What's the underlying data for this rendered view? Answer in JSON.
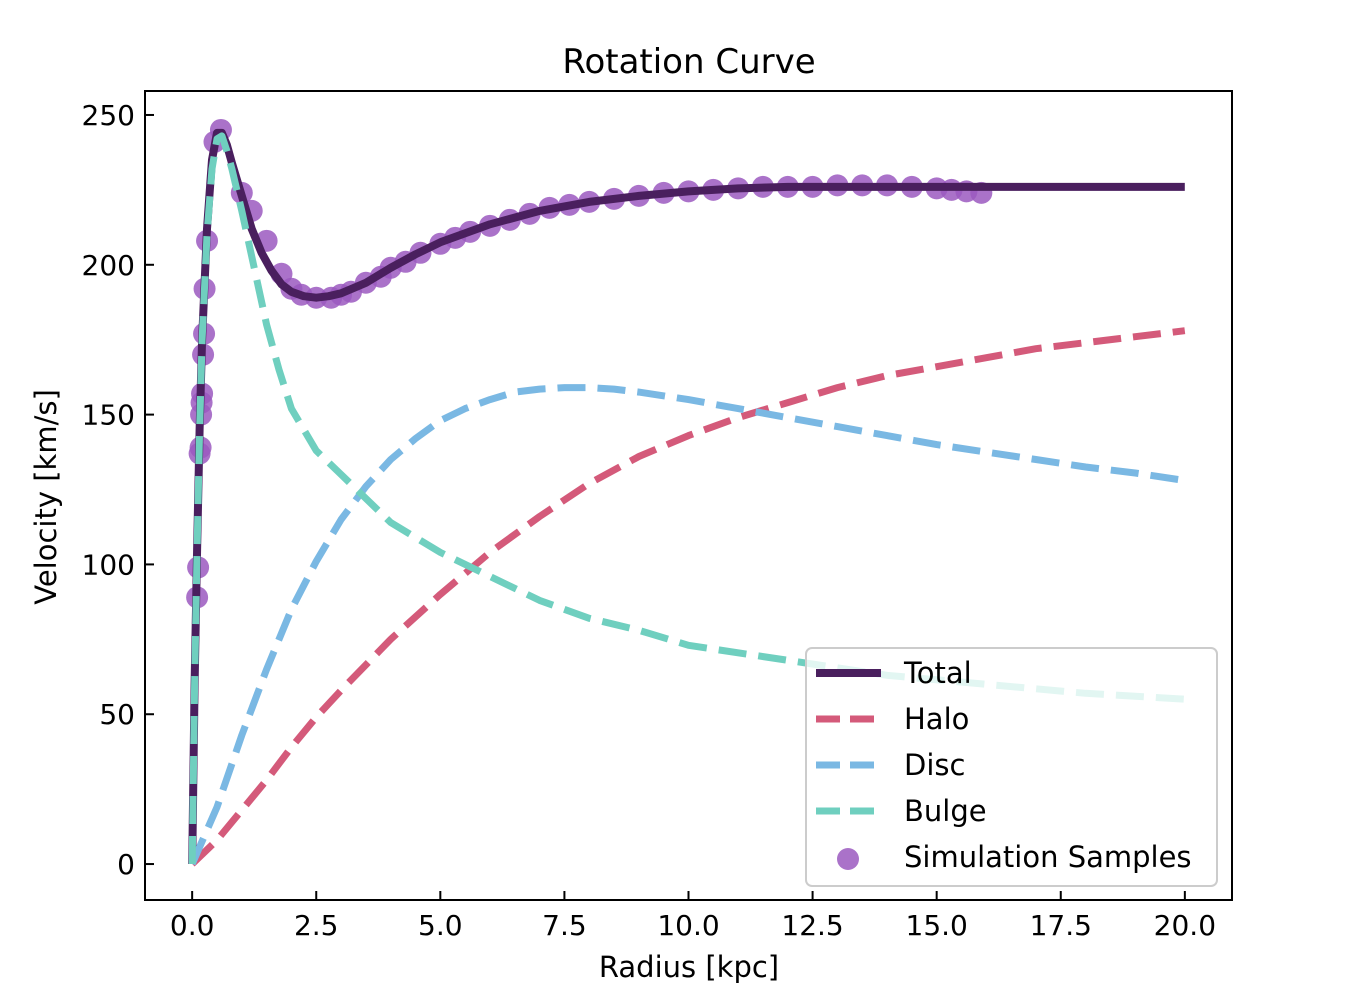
{
  "chart_data": {
    "type": "line",
    "title": "Rotation Curve",
    "xlabel": "Radius [kpc]",
    "ylabel": "Velocity [km/s]",
    "xlim": [
      -0.95,
      20.95
    ],
    "ylim": [
      -12,
      258
    ],
    "xticks": [
      0.0,
      2.5,
      5.0,
      7.5,
      10.0,
      12.5,
      15.0,
      17.5,
      20.0
    ],
    "xtick_labels": [
      "0.0",
      "2.5",
      "5.0",
      "7.5",
      "10.0",
      "12.5",
      "15.0",
      "17.5",
      "20.0"
    ],
    "yticks": [
      0,
      50,
      100,
      150,
      200,
      250
    ],
    "ytick_labels": [
      "0",
      "50",
      "100",
      "150",
      "200",
      "250"
    ],
    "grid": false,
    "legend_position": "lower-right",
    "series": [
      {
        "name": "Total",
        "style": "solid",
        "color": "#4a1f5e",
        "points": [
          [
            0,
            0
          ],
          [
            0.05,
            60
          ],
          [
            0.1,
            105
          ],
          [
            0.15,
            145
          ],
          [
            0.2,
            175
          ],
          [
            0.3,
            212
          ],
          [
            0.4,
            235
          ],
          [
            0.5,
            244
          ],
          [
            0.6,
            244
          ],
          [
            0.7,
            240
          ],
          [
            0.8,
            234
          ],
          [
            1.0,
            223
          ],
          [
            1.2,
            212
          ],
          [
            1.4,
            204
          ],
          [
            1.6,
            198
          ],
          [
            1.8,
            193.5
          ],
          [
            2.0,
            191
          ],
          [
            2.25,
            189.5
          ],
          [
            2.5,
            189
          ],
          [
            2.75,
            189.5
          ],
          [
            3.0,
            190.5
          ],
          [
            3.5,
            194
          ],
          [
            4.0,
            199
          ],
          [
            4.5,
            203.5
          ],
          [
            5.0,
            207.5
          ],
          [
            6.0,
            213.5
          ],
          [
            7.0,
            218
          ],
          [
            8.0,
            221
          ],
          [
            9.0,
            223
          ],
          [
            10.0,
            224.5
          ],
          [
            11.0,
            225.5
          ],
          [
            12.0,
            226
          ],
          [
            13.0,
            226
          ],
          [
            14.0,
            226
          ],
          [
            15.0,
            226
          ],
          [
            16.0,
            226
          ],
          [
            18.0,
            226
          ],
          [
            20.0,
            226
          ]
        ]
      },
      {
        "name": "Halo",
        "style": "dashed",
        "color": "#d45a7a",
        "points": [
          [
            0,
            0
          ],
          [
            0.5,
            8
          ],
          [
            1,
            18
          ],
          [
            1.5,
            28
          ],
          [
            2,
            39
          ],
          [
            2.5,
            49
          ],
          [
            3,
            58
          ],
          [
            4,
            75
          ],
          [
            5,
            90
          ],
          [
            6,
            104
          ],
          [
            7,
            116
          ],
          [
            8,
            127
          ],
          [
            9,
            136
          ],
          [
            10,
            143
          ],
          [
            11,
            149
          ],
          [
            12,
            154
          ],
          [
            13,
            159
          ],
          [
            14,
            163
          ],
          [
            15,
            166
          ],
          [
            16,
            169
          ],
          [
            17,
            172
          ],
          [
            18,
            174
          ],
          [
            19,
            176
          ],
          [
            20,
            178
          ]
        ]
      },
      {
        "name": "Disc",
        "style": "dashed",
        "color": "#7ab8e3",
        "points": [
          [
            0,
            0
          ],
          [
            0.5,
            19
          ],
          [
            1,
            43
          ],
          [
            1.5,
            65
          ],
          [
            2,
            85
          ],
          [
            2.5,
            101
          ],
          [
            3,
            115
          ],
          [
            3.5,
            126
          ],
          [
            4,
            135
          ],
          [
            4.5,
            142
          ],
          [
            5,
            148
          ],
          [
            5.5,
            152
          ],
          [
            6,
            155
          ],
          [
            6.5,
            157.5
          ],
          [
            7,
            158.5
          ],
          [
            7.5,
            159
          ],
          [
            8,
            159
          ],
          [
            8.5,
            158.5
          ],
          [
            9,
            157.5
          ],
          [
            10,
            155
          ],
          [
            11,
            152
          ],
          [
            12,
            149
          ],
          [
            13,
            146
          ],
          [
            14,
            143
          ],
          [
            15,
            140
          ],
          [
            16,
            137.5
          ],
          [
            17,
            135
          ],
          [
            18,
            132.5
          ],
          [
            19,
            130.5
          ],
          [
            20,
            128
          ]
        ]
      },
      {
        "name": "Bulge",
        "style": "dashed",
        "color": "#6fcfbf",
        "points": [
          [
            0,
            0
          ],
          [
            0.05,
            60
          ],
          [
            0.1,
            105
          ],
          [
            0.15,
            145
          ],
          [
            0.2,
            175
          ],
          [
            0.3,
            210
          ],
          [
            0.4,
            232
          ],
          [
            0.5,
            242
          ],
          [
            0.6,
            243
          ],
          [
            0.7,
            238
          ],
          [
            0.8,
            232
          ],
          [
            1.0,
            218
          ],
          [
            1.25,
            199
          ],
          [
            1.5,
            180
          ],
          [
            1.75,
            165
          ],
          [
            2.0,
            152
          ],
          [
            2.5,
            138
          ],
          [
            3.0,
            130
          ],
          [
            3.5,
            122
          ],
          [
            4.0,
            114
          ],
          [
            5.0,
            104
          ],
          [
            6.0,
            96
          ],
          [
            7.0,
            88
          ],
          [
            8.0,
            82
          ],
          [
            9.0,
            78
          ],
          [
            10.0,
            73
          ],
          [
            12.0,
            68
          ],
          [
            14.0,
            63
          ],
          [
            16.0,
            60
          ],
          [
            18.0,
            57
          ],
          [
            20.0,
            55
          ]
        ]
      }
    ],
    "samples": {
      "name": "Simulation Samples",
      "color": "#9b59c0",
      "points": [
        [
          0.1,
          89
        ],
        [
          0.12,
          99
        ],
        [
          0.15,
          137
        ],
        [
          0.17,
          139
        ],
        [
          0.18,
          150
        ],
        [
          0.19,
          154
        ],
        [
          0.2,
          157
        ],
        [
          0.22,
          170
        ],
        [
          0.24,
          177
        ],
        [
          0.25,
          192
        ],
        [
          0.3,
          208
        ],
        [
          0.45,
          241
        ],
        [
          0.58,
          245
        ],
        [
          1.0,
          224
        ],
        [
          1.2,
          218
        ],
        [
          1.5,
          208
        ],
        [
          1.8,
          197
        ],
        [
          2.0,
          192
        ],
        [
          2.2,
          190
        ],
        [
          2.5,
          189
        ],
        [
          2.8,
          189
        ],
        [
          3.0,
          190
        ],
        [
          3.2,
          191
        ],
        [
          3.5,
          194
        ],
        [
          3.8,
          196
        ],
        [
          4.0,
          199
        ],
        [
          4.3,
          201
        ],
        [
          4.6,
          204
        ],
        [
          5.0,
          207
        ],
        [
          5.3,
          209
        ],
        [
          5.6,
          211
        ],
        [
          6.0,
          213
        ],
        [
          6.4,
          215
        ],
        [
          6.8,
          217
        ],
        [
          7.2,
          219
        ],
        [
          7.6,
          220
        ],
        [
          8.0,
          221
        ],
        [
          8.5,
          222
        ],
        [
          9.0,
          223
        ],
        [
          9.5,
          224
        ],
        [
          10.0,
          224.5
        ],
        [
          10.5,
          225
        ],
        [
          11.0,
          225.5
        ],
        [
          11.5,
          226
        ],
        [
          12.0,
          226
        ],
        [
          12.5,
          226
        ],
        [
          13.0,
          226.5
        ],
        [
          13.5,
          226.5
        ],
        [
          14.0,
          226.5
        ],
        [
          14.5,
          226
        ],
        [
          15.0,
          225.5
        ],
        [
          15.3,
          225
        ],
        [
          15.6,
          224.5
        ],
        [
          15.9,
          224
        ]
      ]
    }
  }
}
